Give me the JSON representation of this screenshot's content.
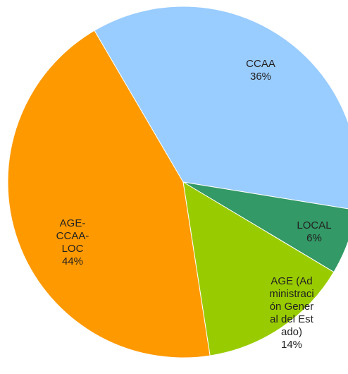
{
  "chart_data": {
    "type": "pie",
    "categories": [
      "CCAA",
      "LOCAL",
      "AGE (Administración General del Estado)",
      "AGE-CCAA-LOC"
    ],
    "values": [
      36,
      6,
      14,
      44
    ],
    "value_labels": [
      "36%",
      "6%",
      "14%",
      "44%"
    ],
    "colors": [
      "#99ccff",
      "#339966",
      "#99cc00",
      "#ff9900"
    ]
  }
}
